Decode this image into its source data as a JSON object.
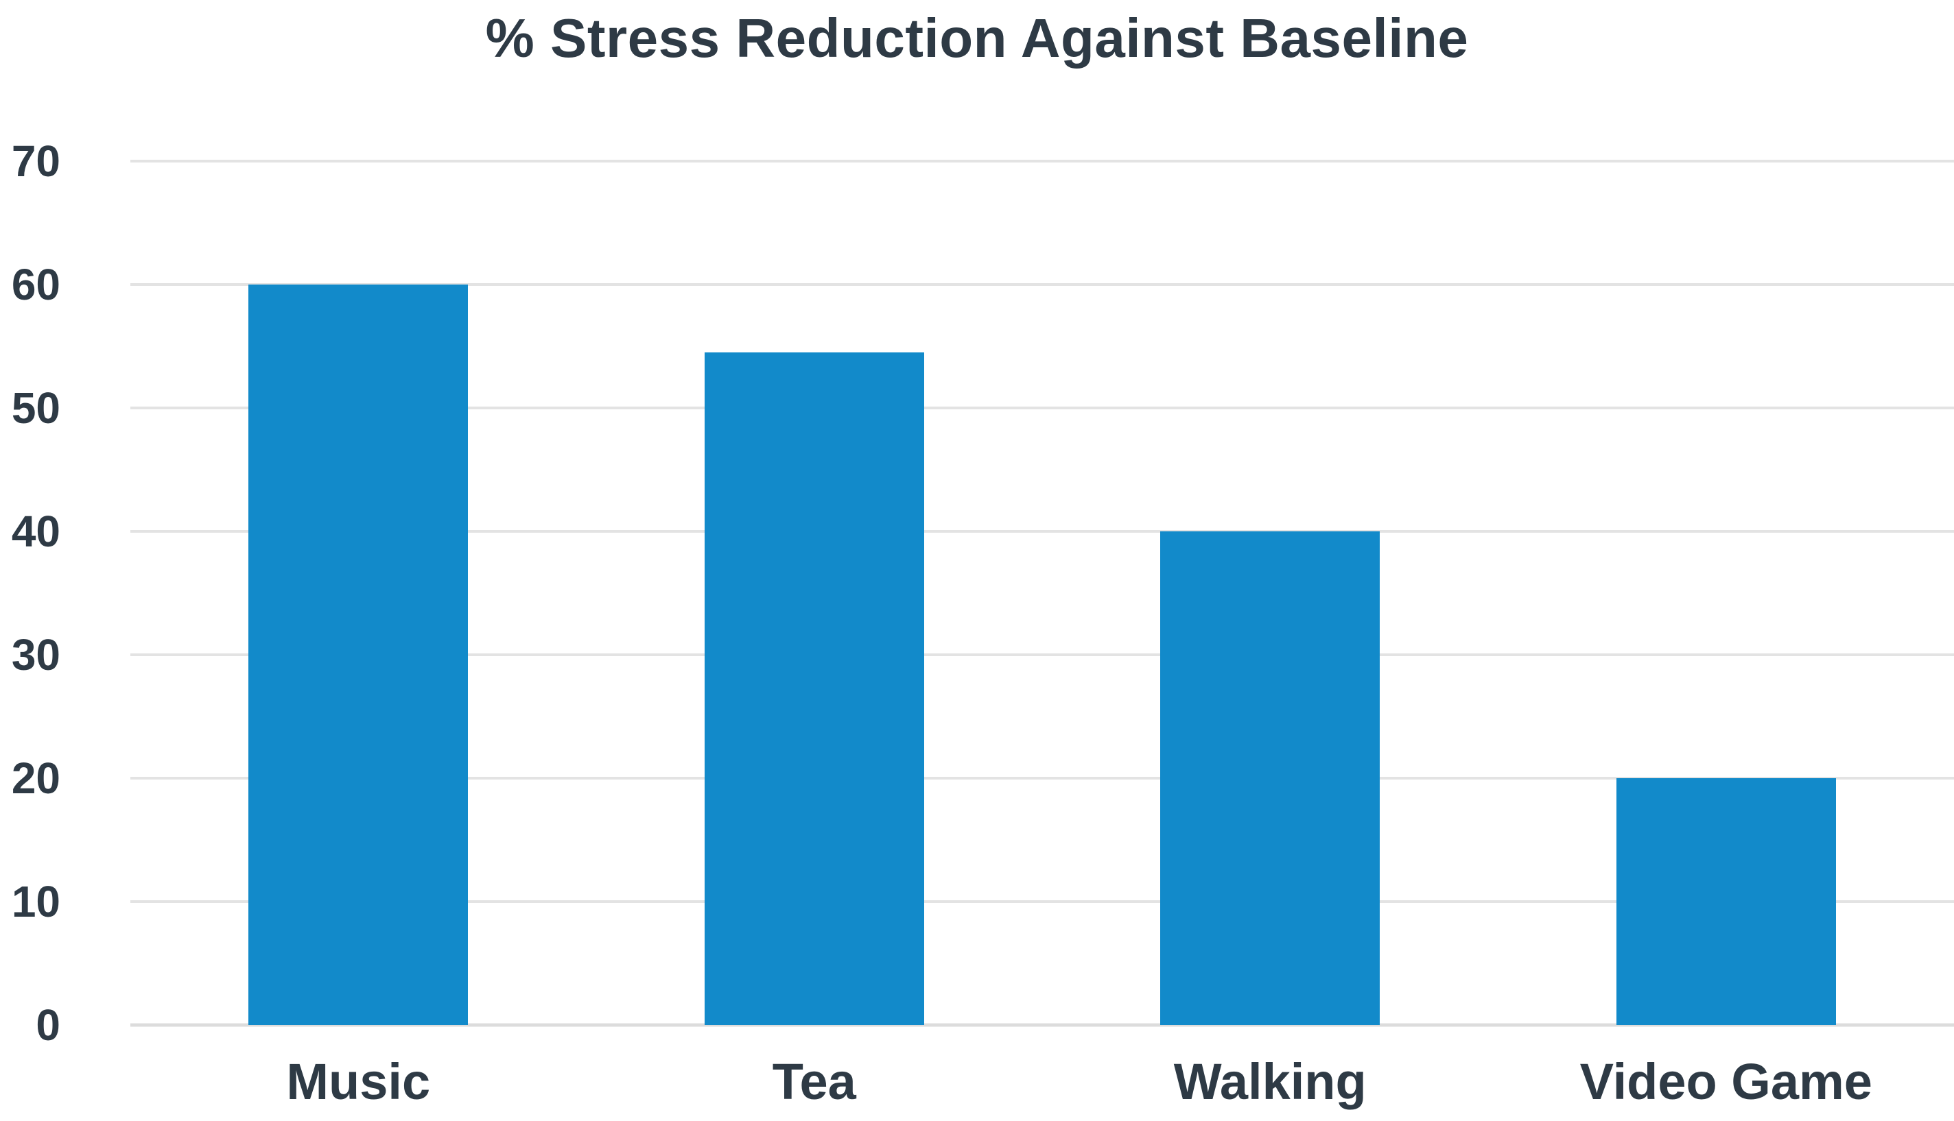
{
  "page": {
    "background_color": "#ffffff"
  },
  "chart_data": {
    "type": "bar",
    "title": "% Stress Reduction Against Baseline",
    "categories": [
      "Music",
      "Tea",
      "Walking",
      "Video Game"
    ],
    "values": [
      60,
      54.5,
      40,
      20
    ],
    "xlabel": "",
    "ylabel": "",
    "ylim": [
      0,
      70
    ],
    "yticks": [
      0,
      10,
      20,
      30,
      40,
      50,
      60,
      70
    ],
    "grid": true,
    "legend": false,
    "bar_color": "#128aca",
    "text_color": "#2e3a45",
    "gridline_color": "#e3e3e3",
    "baseline_color": "#dcdcdc"
  }
}
